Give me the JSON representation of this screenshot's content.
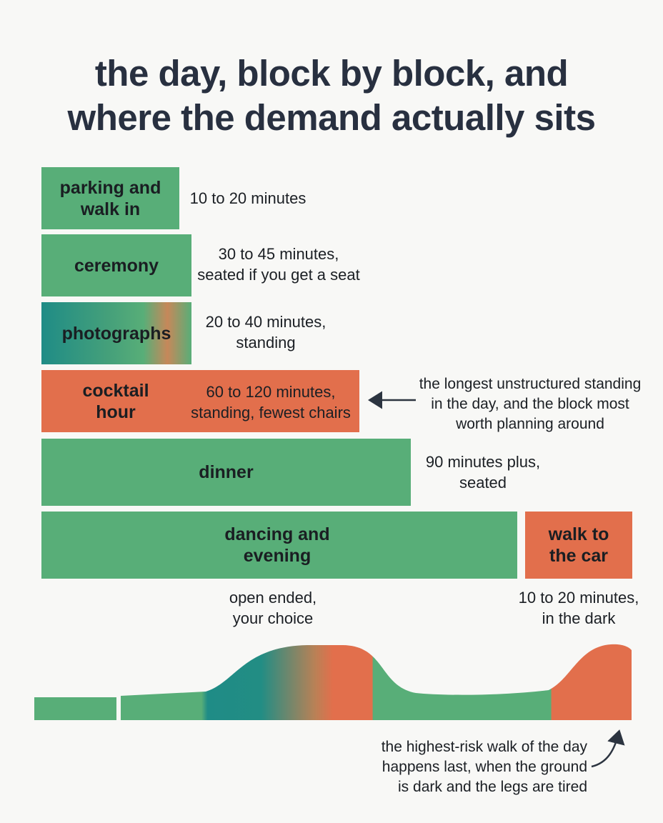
{
  "title": {
    "line1": "the day, block by block, and",
    "line2": "where the demand actually sits"
  },
  "blocks": [
    {
      "label": "parking and\nwalk in",
      "note": "10 to 20 minutes",
      "demand": "low"
    },
    {
      "label": "ceremony",
      "note": "30 to 45 minutes,\nseated if you get a seat",
      "demand": "low"
    },
    {
      "label": "photographs",
      "note": "20 to 40 minutes,\nstanding",
      "demand": "mixed"
    },
    {
      "label": "cocktail\nhour",
      "note": "60 to 120 minutes,\nstanding, fewest chairs",
      "demand": "high"
    },
    {
      "label": "dinner",
      "note": "90 minutes plus,\nseated",
      "demand": "low"
    },
    {
      "label": "dancing and\nevening",
      "note": "open ended,\nyour choice",
      "demand": "low"
    },
    {
      "label": "walk to\nthe car",
      "note": "10 to 20 minutes,\nin the dark",
      "demand": "high"
    }
  ],
  "annotations": {
    "cocktail": "the longest unstructured standing\nin the day, and the block most\nworth planning around",
    "walk": "the highest-risk walk of the day\nhappens last, when the ground\nis dark and the legs are tired"
  },
  "colors": {
    "low_demand": "#58ae78",
    "high_demand": "#e26f4c",
    "transition": "#1f8c86",
    "text": "#283040"
  }
}
